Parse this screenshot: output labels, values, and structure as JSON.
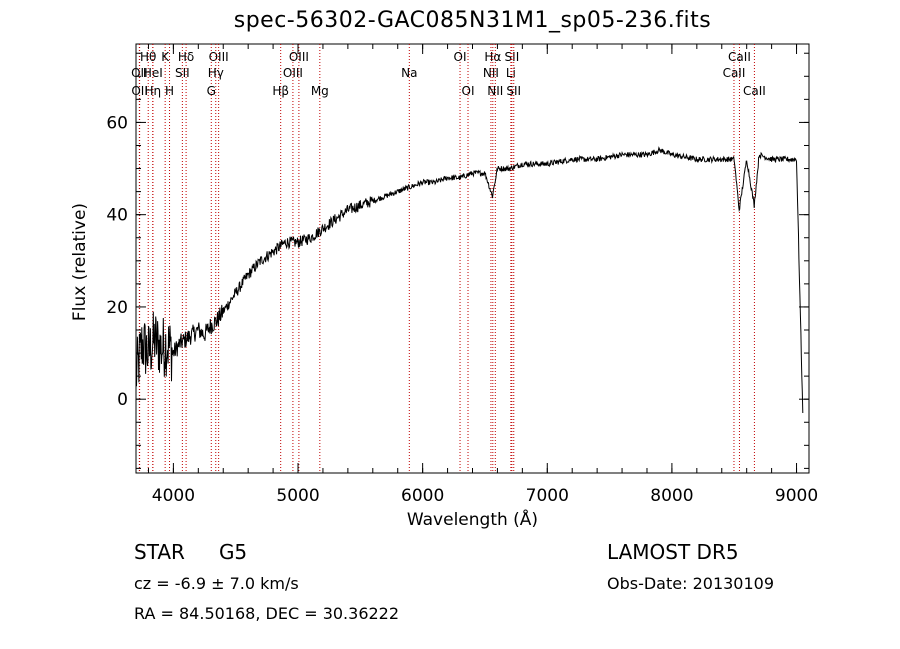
{
  "title": "spec-56302-GAC085N31M1_sp05-236.fits",
  "footer": {
    "class_label": "STAR",
    "subclass": "G5",
    "survey": "LAMOST DR5",
    "cz": "cz = -6.9 ± 7.0 km/s",
    "obs_date": "Obs-Date: 20130109",
    "coords": "RA =  84.50168, DEC =  30.36222"
  },
  "chart_data": {
    "type": "line",
    "title": "spec-56302-GAC085N31M1_sp05-236.fits",
    "xlabel": "Wavelength (Å)",
    "ylabel": "Flux (relative)",
    "xlim": [
      3700,
      9100
    ],
    "ylim": [
      -16,
      77
    ],
    "xticks": [
      4000,
      5000,
      6000,
      7000,
      8000,
      9000
    ],
    "yticks": [
      0,
      20,
      40,
      60
    ],
    "line_color": "#000000",
    "marker_color": "#c00000",
    "series": [
      {
        "x": [
          3700,
          3750,
          3800,
          3850,
          3900,
          3950,
          4000,
          4050,
          4100,
          4150,
          4200,
          4250,
          4300,
          4350,
          4400,
          4450,
          4500,
          4600,
          4700,
          4800,
          4900,
          5000,
          5100,
          5200,
          5300,
          5400,
          5500,
          5600,
          5700,
          5800,
          5900,
          6000,
          6100,
          6200,
          6300,
          6400,
          6500,
          6560,
          6600,
          6700,
          6800,
          6900,
          7000,
          7200,
          7400,
          7600,
          7800,
          7900,
          8000,
          8200,
          8400,
          8500,
          8540,
          8600,
          8660,
          8700,
          8800,
          8900,
          9000,
          9050
        ],
        "y": [
          5,
          12,
          10,
          13,
          11,
          12,
          10,
          12,
          13,
          14,
          15,
          14,
          16,
          17,
          19,
          21,
          23,
          27,
          30,
          32,
          34,
          34,
          35,
          37,
          39,
          41,
          42,
          43,
          44,
          45,
          46,
          47,
          47,
          48,
          48,
          49,
          49,
          44,
          50,
          50,
          51,
          51,
          51,
          52,
          52,
          53,
          53,
          54,
          53,
          52,
          52,
          52,
          41,
          52,
          42,
          53,
          52,
          52,
          52,
          -3
        ]
      }
    ],
    "line_markers": [
      {
        "label": "Hθ",
        "x": 3798,
        "row": 1
      },
      {
        "label": "OII",
        "x": 3727,
        "row": 2
      },
      {
        "label": "OII",
        "x": 3729,
        "row": 3
      },
      {
        "label": "HeI",
        "x": 3835,
        "row": 2
      },
      {
        "label": "Hη",
        "x": 3835,
        "row": 3
      },
      {
        "label": "K",
        "x": 3934,
        "row": 1
      },
      {
        "label": "H",
        "x": 3969,
        "row": 3
      },
      {
        "label": "SII",
        "x": 4072,
        "row": 2
      },
      {
        "label": "Hδ",
        "x": 4102,
        "row": 1
      },
      {
        "label": "OIII",
        "x": 4363,
        "row": 1
      },
      {
        "label": "Hγ",
        "x": 4340,
        "row": 2
      },
      {
        "label": "G",
        "x": 4304,
        "row": 3
      },
      {
        "label": "Hβ",
        "x": 4861,
        "row": 3
      },
      {
        "label": "OIII",
        "x": 5007,
        "row": 1
      },
      {
        "label": "OIII",
        "x": 4959,
        "row": 2
      },
      {
        "label": "Mg",
        "x": 5175,
        "row": 3
      },
      {
        "label": "Na",
        "x": 5893,
        "row": 2
      },
      {
        "label": "OI",
        "x": 6300,
        "row": 1
      },
      {
        "label": "OI",
        "x": 6364,
        "row": 3
      },
      {
        "label": "Hα",
        "x": 6563,
        "row": 1
      },
      {
        "label": "NII",
        "x": 6548,
        "row": 2
      },
      {
        "label": "NII",
        "x": 6583,
        "row": 3
      },
      {
        "label": "SII",
        "x": 6716,
        "row": 1
      },
      {
        "label": "Li",
        "x": 6708,
        "row": 2
      },
      {
        "label": "SII",
        "x": 6731,
        "row": 3
      },
      {
        "label": "CaII",
        "x": 8542,
        "row": 1
      },
      {
        "label": "CaII",
        "x": 8498,
        "row": 2
      },
      {
        "label": "CaII",
        "x": 8662,
        "row": 3
      }
    ]
  }
}
